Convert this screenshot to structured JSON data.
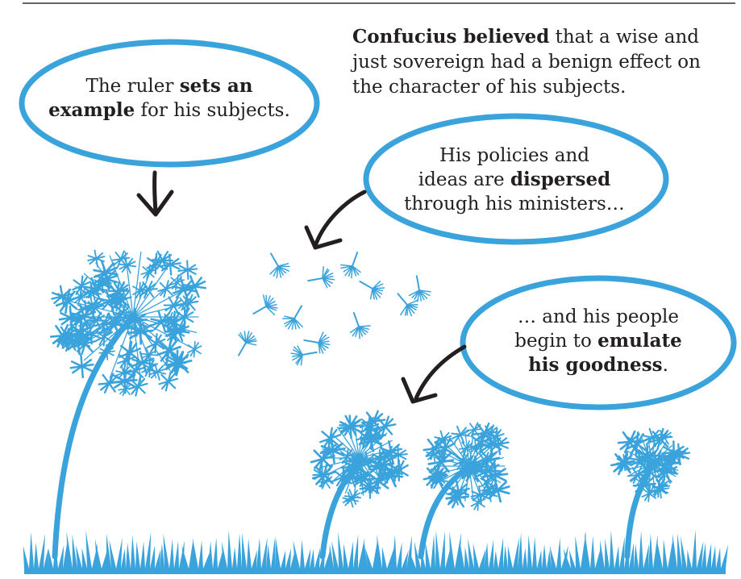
{
  "intro": {
    "bold": "Confucius believed",
    "rest1": " that a wise and",
    "line2": "just sovereign had a benign effect on",
    "line3": "the character of his subjects."
  },
  "bubble_ruler": {
    "pre": "The ruler ",
    "bold1": "sets an",
    "bold2": "example",
    "post": " for his subjects."
  },
  "bubble_ministers": {
    "line1": "His policies and",
    "pre": "ideas are ",
    "bold": "dispersed",
    "line3": "through his ministers…"
  },
  "bubble_people": {
    "line1": "… and his people",
    "pre": "begin to ",
    "bold1": "emulate",
    "bold2": "his goodness",
    "post": "."
  },
  "colors": {
    "accent": "#3aa3db",
    "ink": "#231f20",
    "rule": "#333333"
  }
}
